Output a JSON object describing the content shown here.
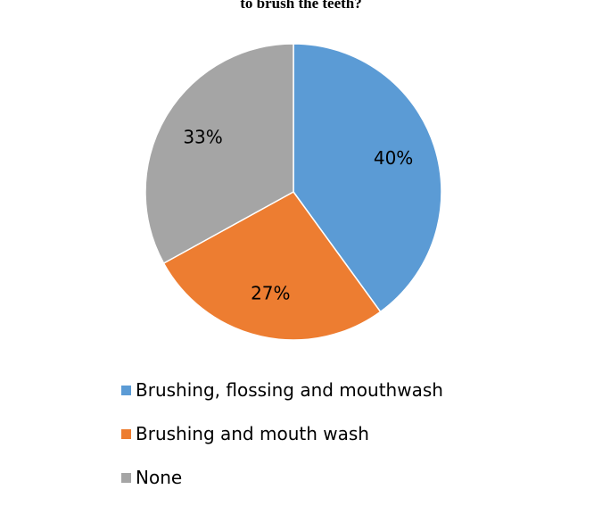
{
  "chart_data": {
    "type": "pie",
    "title": "to brush the teeth?",
    "categories": [
      "Brushing, flossing and mouthwash",
      "Brushing and mouth wash",
      "None"
    ],
    "values": [
      40,
      27,
      33
    ],
    "data_labels": [
      "40%",
      "27%",
      "33%"
    ],
    "colors": [
      "#5b9bd5",
      "#ed7d31",
      "#a5a5a5"
    ],
    "legend_position": "bottom"
  }
}
